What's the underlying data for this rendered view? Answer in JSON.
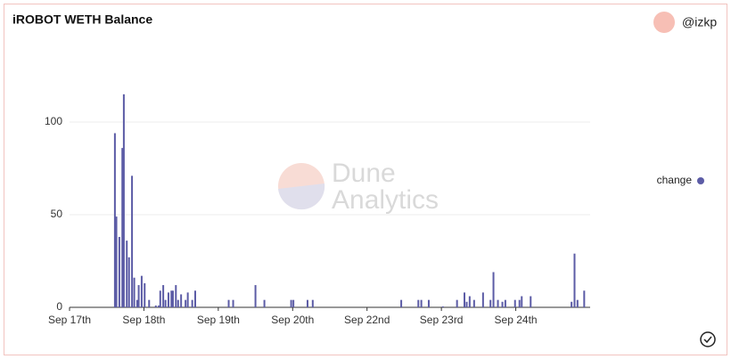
{
  "chart_data": {
    "type": "bar",
    "title": "iROBOT WETH Balance",
    "author": "@izkp",
    "watermark": [
      "Dune",
      "Analytics"
    ],
    "x": [
      0.61,
      0.63,
      0.67,
      0.71,
      0.73,
      0.77,
      0.8,
      0.84,
      0.87,
      0.91,
      0.93,
      0.97,
      1.01,
      1.07,
      1.16,
      1.2,
      1.22,
      1.26,
      1.29,
      1.33,
      1.37,
      1.39,
      1.43,
      1.46,
      1.5,
      1.56,
      1.59,
      1.65,
      1.69,
      2.14,
      2.2,
      2.5,
      2.62,
      2.98,
      3.01,
      3.2,
      3.27,
      4.46,
      4.69,
      4.73,
      4.83,
      5.02,
      5.21,
      5.31,
      5.34,
      5.38,
      5.44,
      5.56,
      5.66,
      5.7,
      5.76,
      5.82,
      5.86,
      5.99,
      6.05,
      6.08,
      6.2,
      6.75,
      6.79,
      6.83,
      6.92
    ],
    "series": [
      {
        "name": "change",
        "color": "#5c5ca6",
        "values": [
          94,
          49,
          38,
          86,
          115,
          36,
          27,
          71,
          16,
          4,
          12,
          17,
          13,
          4,
          1,
          1,
          9,
          12,
          4,
          8,
          9,
          9,
          12,
          4,
          7,
          4,
          8,
          4,
          9,
          4,
          4,
          12,
          4,
          4,
          4,
          4,
          4,
          4,
          4,
          4,
          4,
          0.5,
          4,
          8,
          3,
          6,
          4,
          8,
          4,
          19,
          4,
          3,
          4,
          4,
          4,
          6,
          6,
          3,
          29,
          4,
          9
        ]
      }
    ],
    "xlim": [
      0,
      7
    ],
    "xticks": [
      {
        "value": 0,
        "label": "Sep 17th"
      },
      {
        "value": 1,
        "label": "Sep 18th"
      },
      {
        "value": 2,
        "label": "Sep 19th"
      },
      {
        "value": 3,
        "label": "Sep 20th"
      },
      {
        "value": 4,
        "label": "Sep 22nd"
      },
      {
        "value": 5,
        "label": "Sep 23rd"
      },
      {
        "value": 6,
        "label": "Sep 24th"
      }
    ],
    "ylim": [
      0,
      138
    ],
    "yticks": [
      0,
      50,
      100
    ],
    "grid": true,
    "legend": "right"
  }
}
